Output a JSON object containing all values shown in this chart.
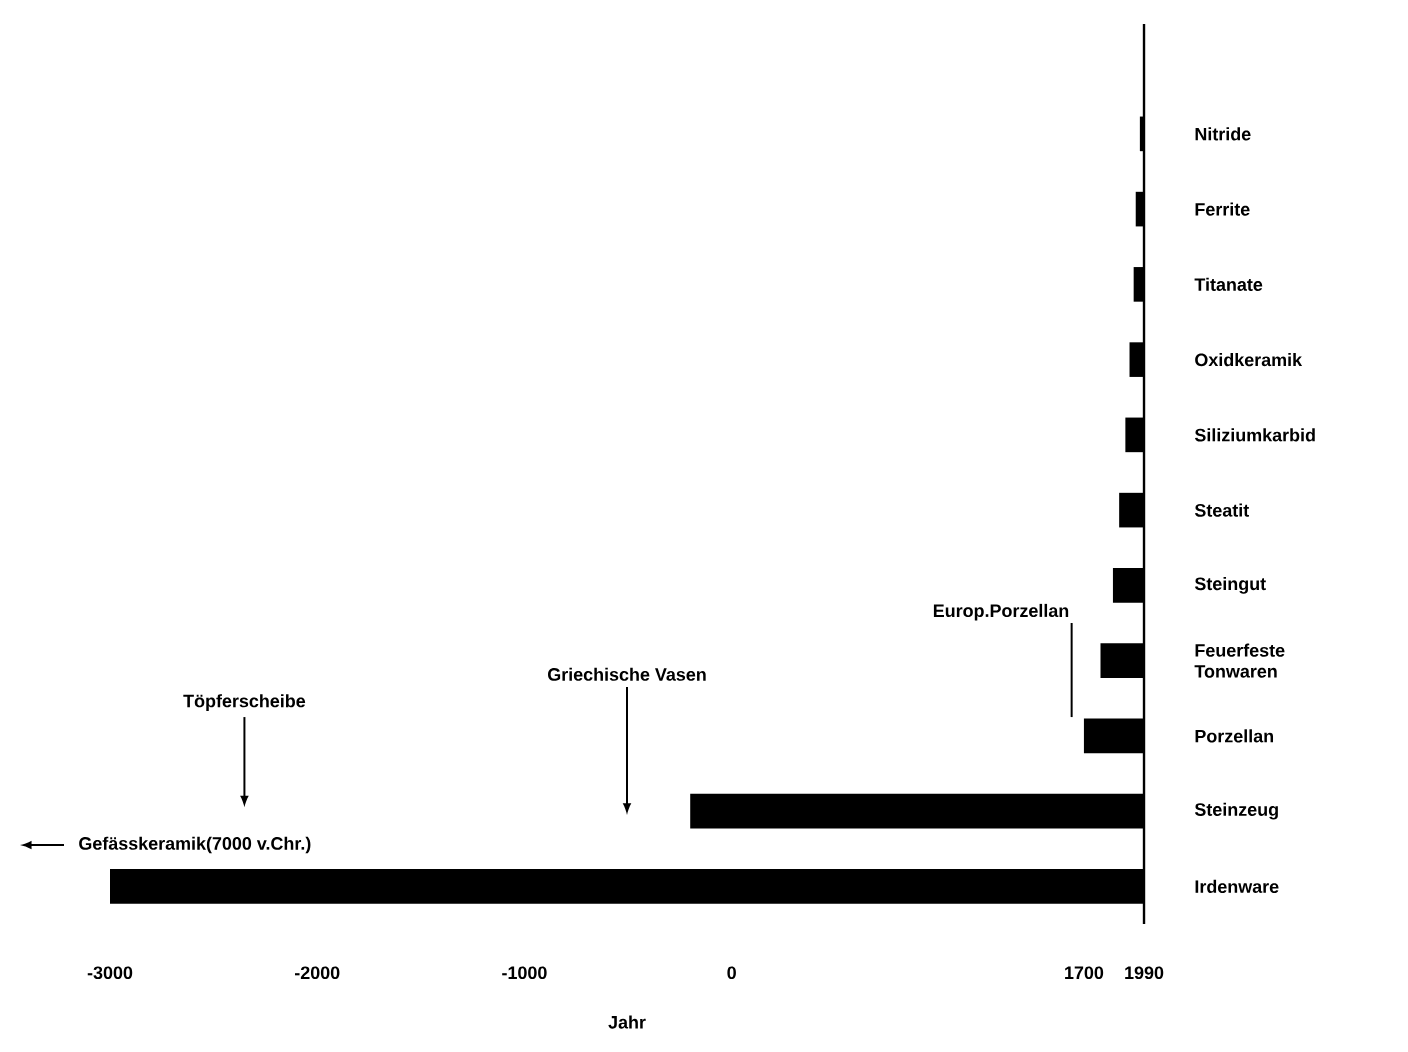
{
  "chart_data": {
    "type": "bar",
    "orientation": "horizontal",
    "xlabel": "Jahr",
    "categories": [
      "Nitride",
      "Ferrite",
      "Titanate",
      "Oxidkeramik",
      "Siliziumkarbid",
      "Steatit",
      "Steingut",
      "Feuerfeste Tonwaren",
      "Porzellan",
      "Steinzeug",
      "Irdenware"
    ],
    "base": [
      1970,
      1950,
      1940,
      1920,
      1900,
      1870,
      1840,
      1780,
      1700,
      -200,
      -3000
    ],
    "values": [
      20,
      40,
      50,
      70,
      90,
      120,
      150,
      210,
      290,
      2190,
      4990
    ],
    "color": "#000000",
    "xlim": [
      -3000,
      1990
    ],
    "xticks": [
      -3000,
      -2000,
      -1000,
      0,
      1700,
      1990
    ],
    "annotations": [
      "Töpferscheibe",
      "Griechische Vasen",
      "Europ.Porzellan",
      "Gefässkeramik(7000 v.Chr.)"
    ]
  }
}
